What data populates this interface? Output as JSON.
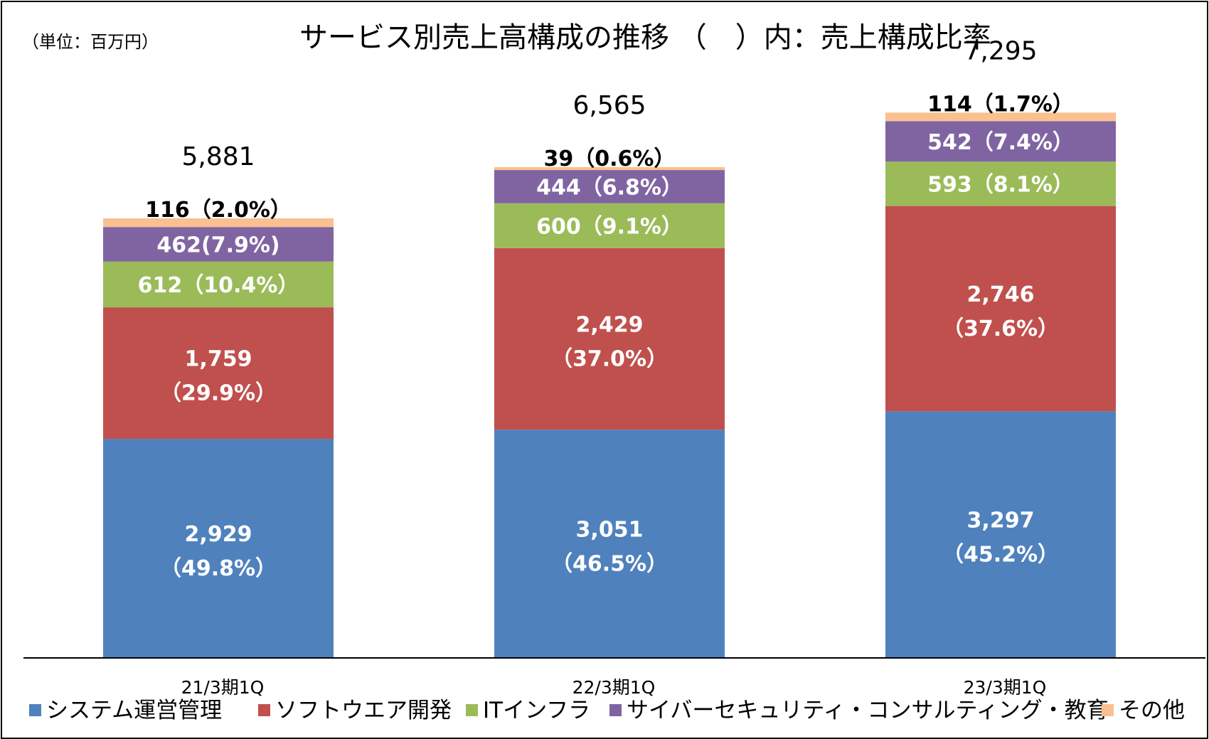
{
  "unit_note": "（単位：百万円）",
  "title": "サービス別売上高構成の推移 （　）内：売上構成比率",
  "chart_data": {
    "type": "bar",
    "stacked": true,
    "categories": [
      "21/3期1Q",
      "22/3期1Q",
      "23/3期1Q"
    ],
    "series": [
      {
        "name": "システム運営管理",
        "color": "#4F81BD",
        "values": [
          2929,
          3051,
          3297
        ],
        "labels": [
          "2,929",
          "3,051",
          "3,297"
        ],
        "pcts": [
          "（49.8%）",
          "（46.5%）",
          "（45.2%）"
        ]
      },
      {
        "name": "ソフトウエア開発",
        "color": "#C0504D",
        "values": [
          1759,
          2429,
          2746
        ],
        "labels": [
          "1,759",
          "2,429",
          "2,746"
        ],
        "pcts": [
          "（29.9%）",
          "（37.0%）",
          "（37.6%）"
        ]
      },
      {
        "name": "ITインフラ",
        "color": "#9BBB59",
        "values": [
          612,
          600,
          593
        ],
        "labels": [
          "612（10.4%）",
          "600（9.1%）",
          "593（8.1%）"
        ]
      },
      {
        "name": "サイバーセキュリティ・コンサルティング・教育",
        "color": "#8064A2",
        "values": [
          462,
          444,
          542
        ],
        "labels": [
          "462(7.9%)",
          "444（6.8%）",
          "542（7.4%）"
        ]
      },
      {
        "name": "その他",
        "color": "#FAC090",
        "values": [
          116,
          39,
          114
        ],
        "labels": [
          "116（2.0%）",
          "39（0.6%）",
          "114（1.7%）"
        ]
      }
    ],
    "totals": [
      "5,881",
      "6,565",
      "7,295"
    ],
    "ylim": [
      0,
      7295
    ],
    "legend_position": "bottom",
    "grid": false
  }
}
